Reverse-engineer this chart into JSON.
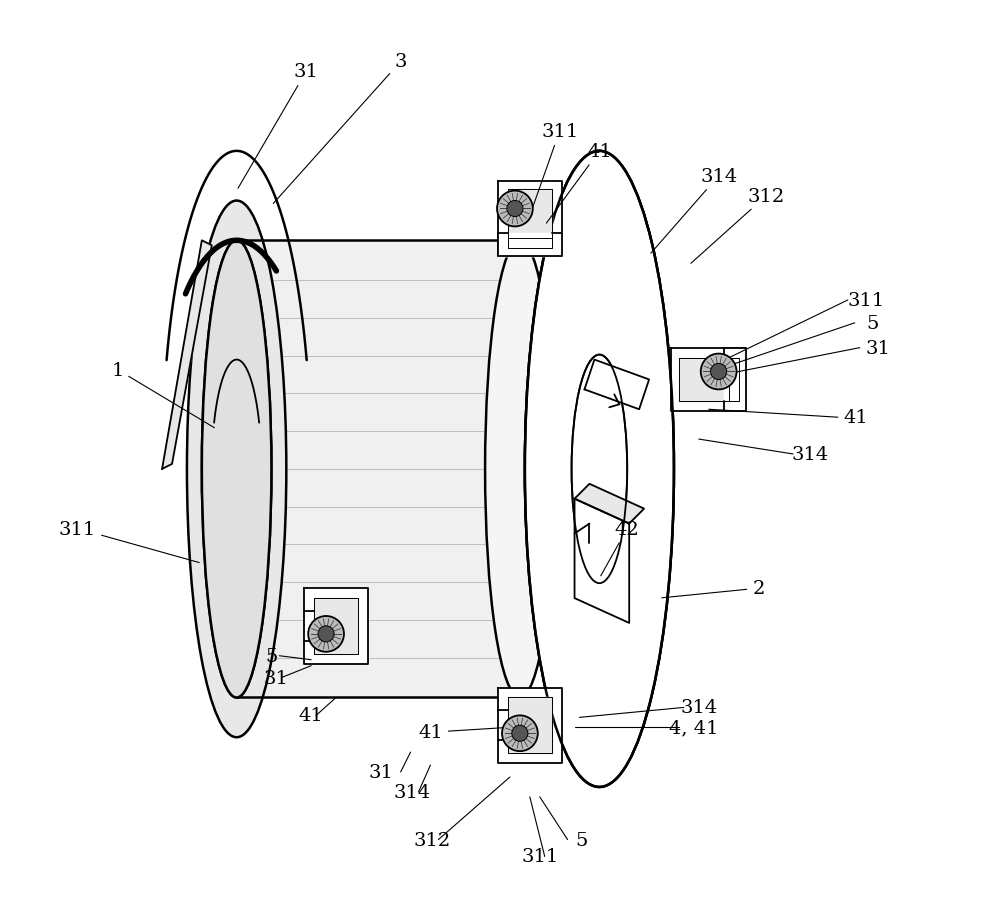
{
  "bg_color": "#ffffff",
  "lw": 1.3,
  "lw_thick": 1.8,
  "lw_thin": 0.7,
  "figsize": [
    10.0,
    9.04
  ],
  "dpi": 100,
  "gray_light": "#e8e8e8",
  "gray_mid": "#cccccc",
  "gray_dark": "#999999",
  "white": "#ffffff"
}
